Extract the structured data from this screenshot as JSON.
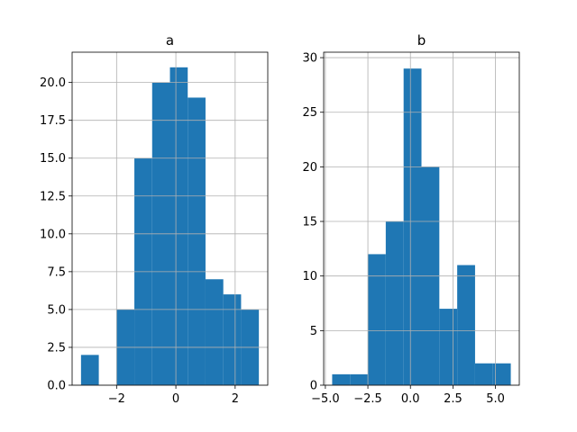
{
  "colors": {
    "bar": "#1f77b4",
    "grid": "#b0b0b0",
    "background": "#ffffff"
  },
  "chart_data": [
    {
      "type": "bar",
      "subtype": "histogram",
      "title": "a",
      "xlabel": "",
      "ylabel": "",
      "grid": true,
      "bin_edges": [
        -3.2,
        -2.6,
        -2.0,
        -1.4,
        -0.8,
        -0.2,
        0.4,
        1.0,
        1.6,
        2.2,
        2.8
      ],
      "values": [
        2,
        0,
        5,
        15,
        20,
        21,
        19,
        7,
        6,
        5
      ],
      "xlim": [
        -3.5,
        3.1
      ],
      "ylim": [
        0,
        22
      ],
      "xticks": [
        -2,
        0,
        2
      ],
      "xtick_labels": [
        "−2",
        "0",
        "2"
      ],
      "yticks": [
        0,
        2.5,
        5,
        7.5,
        10,
        12.5,
        15,
        17.5,
        20
      ],
      "ytick_labels": [
        "0.0",
        "2.5",
        "5.0",
        "7.5",
        "10.0",
        "12.5",
        "15.0",
        "17.5",
        "20.0"
      ]
    },
    {
      "type": "bar",
      "subtype": "histogram",
      "title": "b",
      "xlabel": "",
      "ylabel": "",
      "grid": true,
      "bin_edges": [
        -4.6,
        -3.55,
        -2.5,
        -1.45,
        -0.4,
        0.65,
        1.7,
        2.75,
        3.8,
        4.85,
        5.9
      ],
      "values": [
        1,
        1,
        12,
        15,
        29,
        20,
        7,
        11,
        2,
        2
      ],
      "xlim": [
        -5.1,
        6.4
      ],
      "ylim": [
        0,
        30.5
      ],
      "xticks": [
        -5,
        -2.5,
        0,
        2.5,
        5
      ],
      "xtick_labels": [
        "−5.0",
        "−2.5",
        "0.0",
        "2.5",
        "5.0"
      ],
      "yticks": [
        0,
        5,
        10,
        15,
        20,
        25,
        30
      ],
      "ytick_labels": [
        "0",
        "5",
        "10",
        "15",
        "20",
        "25",
        "30"
      ]
    }
  ]
}
